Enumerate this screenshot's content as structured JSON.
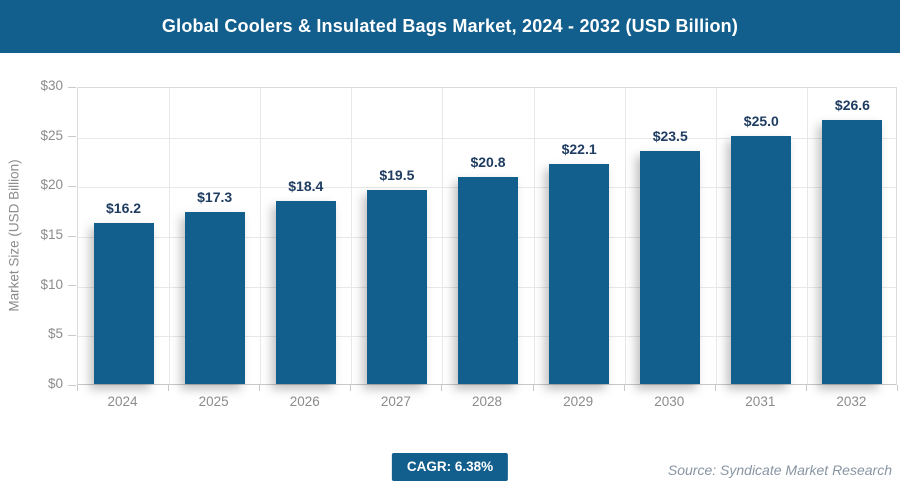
{
  "header": {
    "title": "Global Coolers & Insulated Bags Market, 2024 - 2032 (USD Billion)",
    "background_color": "#125E8C",
    "text_color": "#FFFFFF"
  },
  "chart_data": {
    "type": "bar",
    "title": "Global Coolers & Insulated Bags Market, 2024 - 2032 (USD Billion)",
    "categories": [
      "2024",
      "2025",
      "2026",
      "2027",
      "2028",
      "2029",
      "2030",
      "2031",
      "2032"
    ],
    "values": [
      16.2,
      17.3,
      18.4,
      19.5,
      20.8,
      22.1,
      23.5,
      25.0,
      26.6
    ],
    "value_labels": [
      "$16.2",
      "$17.3",
      "$18.4",
      "$19.5",
      "$20.8",
      "$22.1",
      "$23.5",
      "$25.0",
      "$26.6"
    ],
    "xlabel": "",
    "ylabel": "Market Size (USD Billion)",
    "ylim": [
      0,
      30
    ],
    "ytick_step": 5,
    "ytick_labels": [
      "$0",
      "$5",
      "$10",
      "$15",
      "$20",
      "$25",
      "$30"
    ],
    "grid": true,
    "legend": false,
    "bar_color": "#125E8C",
    "value_label_color": "#1F3C61",
    "axis_label_color": "#8C8C8C"
  },
  "footer": {
    "cagr_label": "CAGR: 6.38%",
    "source": "Source: Syndicate Market Research"
  }
}
